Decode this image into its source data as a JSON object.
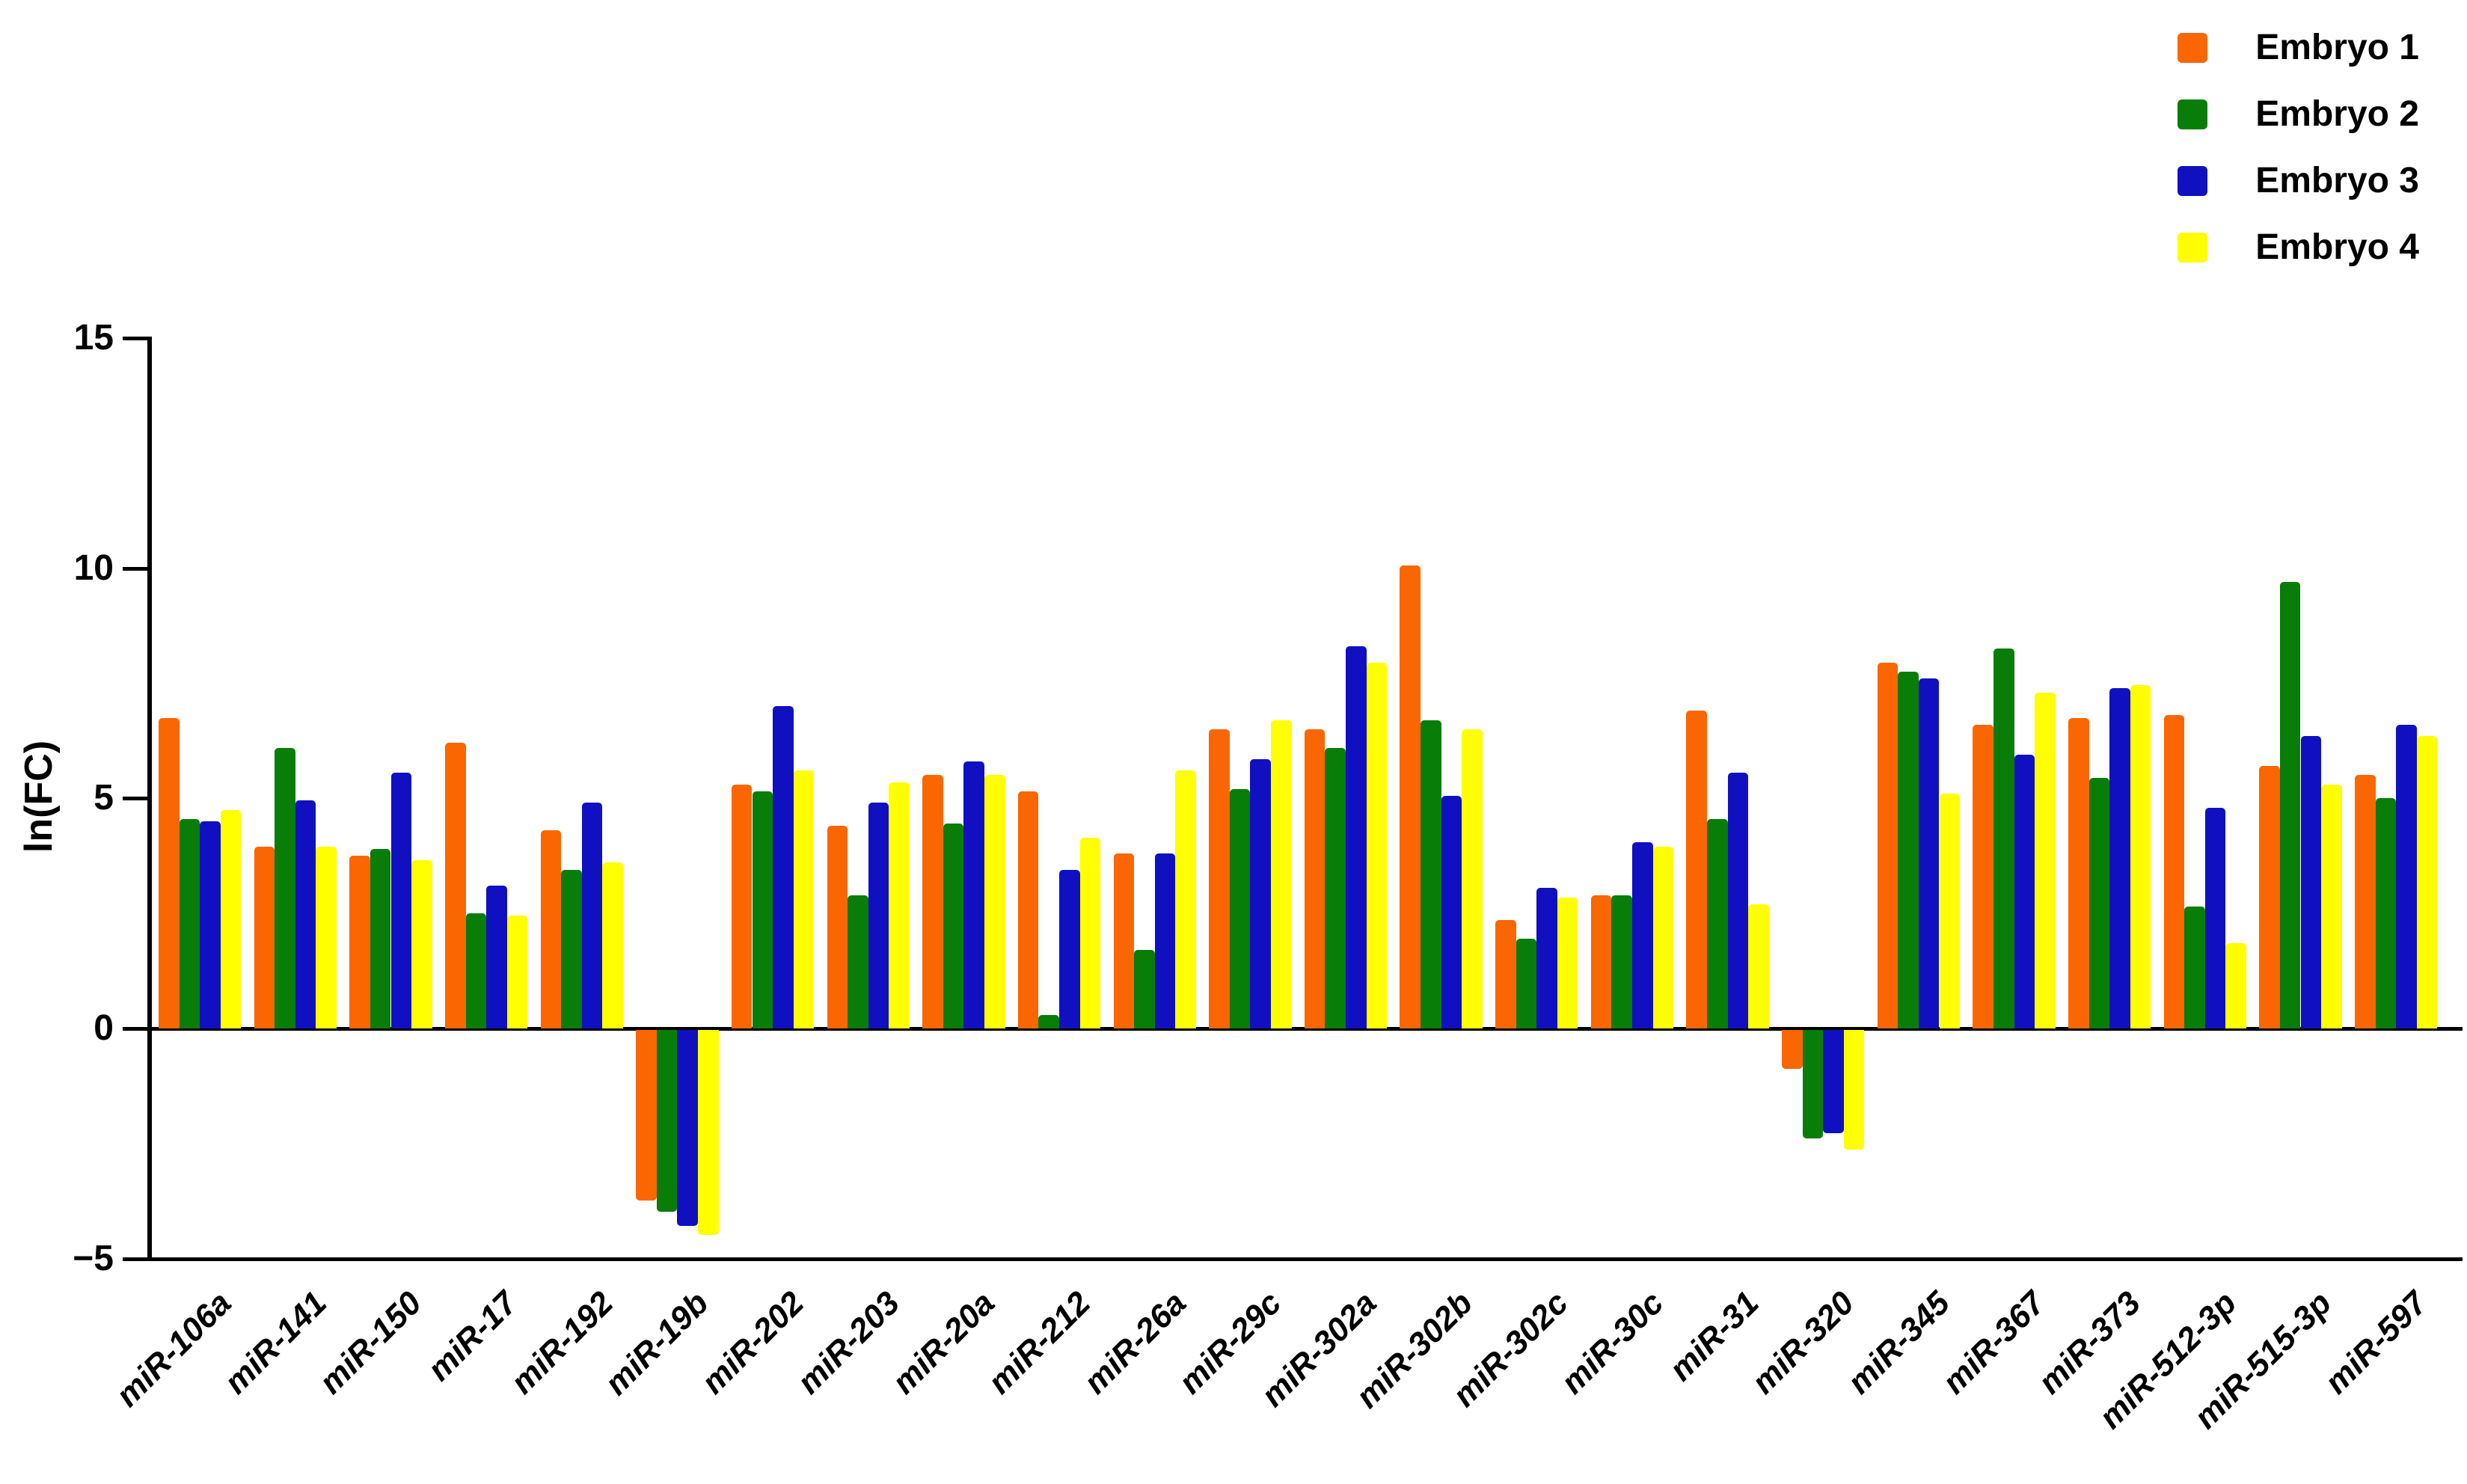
{
  "figure": {
    "background": "#FFFFFF",
    "axis_color": "#000000"
  },
  "legend": {
    "position": "top-right",
    "items": [
      {
        "label": "Embryo 1",
        "color": "#FA6602"
      },
      {
        "label": "Embryo 2",
        "color": "#087D08"
      },
      {
        "label": "Embryo 3",
        "color": "#1010C0"
      },
      {
        "label": "Embryo 4",
        "color": "#FFFF00"
      }
    ]
  },
  "y_axis": {
    "title": "ln(FC)",
    "tick_labels": [
      "15",
      "10",
      "5",
      "0",
      "−5"
    ],
    "tick_values": [
      15,
      10,
      5,
      0,
      -5
    ]
  },
  "chart_data": {
    "type": "bar",
    "title": "",
    "xlabel": "",
    "ylabel": "ln(FC)",
    "ylim": [
      -5,
      15
    ],
    "yticks": [
      15,
      10,
      5,
      0,
      -5
    ],
    "grid": false,
    "legend_position": "top-right",
    "baseline": 0,
    "categories": [
      "miR-106a",
      "miR-141",
      "miR-150",
      "miR-17",
      "miR-192",
      "miR-19b",
      "miR-202",
      "miR-203",
      "miR-20a",
      "miR-212",
      "miR-26a",
      "miR-29c",
      "miR-302a",
      "miR-302b",
      "miR-302c",
      "miR-30c",
      "miR-31",
      "miR-320",
      "miR-345",
      "miR-367",
      "miR-373",
      "miR-512-3p",
      "miR-515-3p",
      "miR-597"
    ],
    "series": [
      {
        "name": "Embryo 1",
        "color": "#FA6602",
        "values": [
          6.75,
          3.95,
          3.75,
          6.2,
          4.3,
          -3.7,
          5.3,
          4.4,
          5.5,
          5.15,
          3.8,
          6.5,
          6.5,
          10.05,
          2.35,
          2.9,
          6.9,
          -0.85,
          7.95,
          6.6,
          6.75,
          6.8,
          5.7,
          5.5
        ]
      },
      {
        "name": "Embryo 2",
        "color": "#087D08",
        "values": [
          4.55,
          6.1,
          3.9,
          2.5,
          3.45,
          -3.95,
          5.15,
          2.9,
          4.45,
          0.3,
          1.7,
          5.2,
          6.1,
          6.7,
          1.95,
          2.9,
          4.55,
          -2.35,
          7.75,
          8.25,
          5.45,
          2.65,
          9.7,
          5.0
        ]
      },
      {
        "name": "Embryo 3",
        "color": "#1010C0",
        "values": [
          4.5,
          4.95,
          5.55,
          3.1,
          4.9,
          -4.25,
          7.0,
          4.9,
          5.8,
          3.45,
          3.8,
          5.85,
          8.3,
          5.05,
          3.05,
          4.05,
          5.55,
          -2.25,
          7.6,
          5.95,
          7.4,
          4.8,
          6.35,
          6.6
        ]
      },
      {
        "name": "Embryo 4",
        "color": "#FFFF00",
        "values": [
          4.75,
          3.95,
          3.65,
          2.45,
          3.6,
          -4.45,
          5.6,
          5.35,
          5.5,
          4.15,
          5.6,
          6.7,
          7.95,
          6.5,
          2.85,
          3.95,
          2.7,
          -2.6,
          5.1,
          7.3,
          7.45,
          1.85,
          5.3,
          6.35
        ]
      }
    ]
  }
}
